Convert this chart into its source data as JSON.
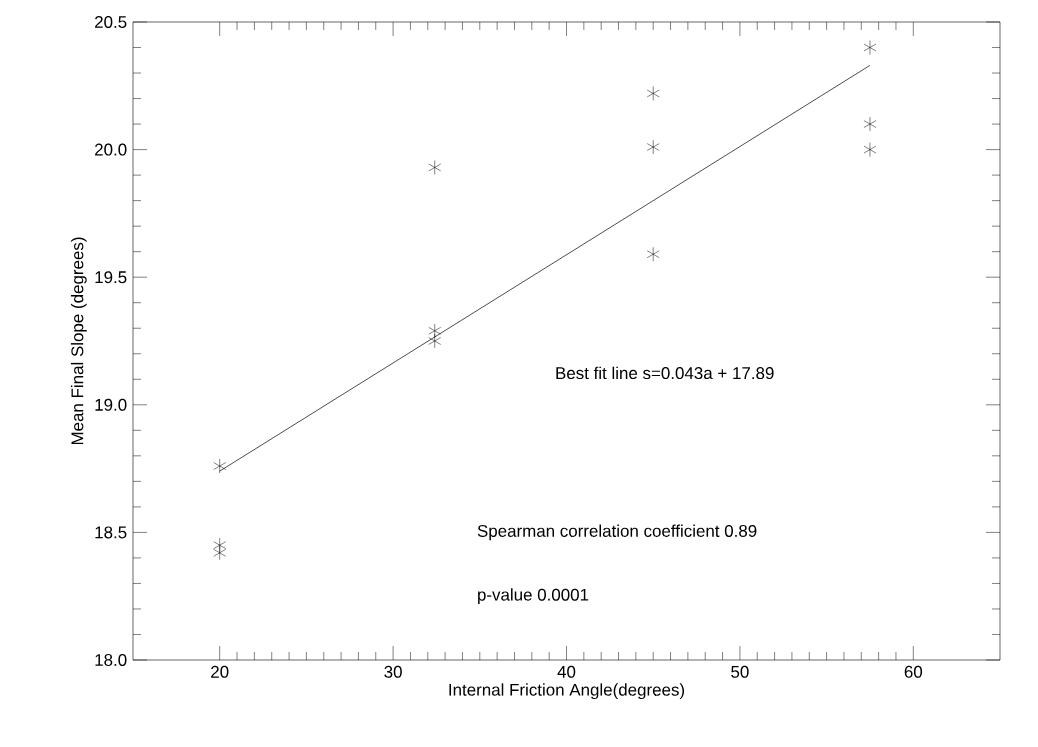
{
  "chart_data": {
    "type": "scatter",
    "xlabel": "Internal Friction Angle(degrees)",
    "ylabel": "Mean Final Slope (degrees)",
    "xlim": [
      15,
      65
    ],
    "ylim": [
      18.0,
      20.5
    ],
    "xticks": [
      20,
      30,
      40,
      50,
      60
    ],
    "yticks": [
      {
        "value": 18.0,
        "label": "18.0"
      },
      {
        "value": 18.5,
        "label": "18.5"
      },
      {
        "value": 19.0,
        "label": "19.0"
      },
      {
        "value": 19.5,
        "label": "19.5"
      },
      {
        "value": 20.0,
        "label": "20.0"
      },
      {
        "value": 20.5,
        "label": "20.5"
      }
    ],
    "grid": false,
    "marker": "cross",
    "series": [
      {
        "color": "#000000",
        "x": [
          20,
          20,
          20,
          32.4,
          32.4,
          32.4,
          45,
          45,
          45,
          57.5,
          57.5,
          57.5
        ],
        "values": [
          18.76,
          18.45,
          18.42,
          19.93,
          19.29,
          19.25,
          20.22,
          20.01,
          19.59,
          20.4,
          20.1,
          20.0
        ]
      },
      {
        "type": "line",
        "color": "#000000",
        "x": [
          20,
          57.5
        ],
        "values": [
          18.74,
          20.33
        ],
        "marker": "none"
      }
    ],
    "annotations": [
      "Best fit line  s=0.043a + 17.89",
      "Spearman correlation coefficient 0.89",
      "p-value 0.0001"
    ]
  }
}
